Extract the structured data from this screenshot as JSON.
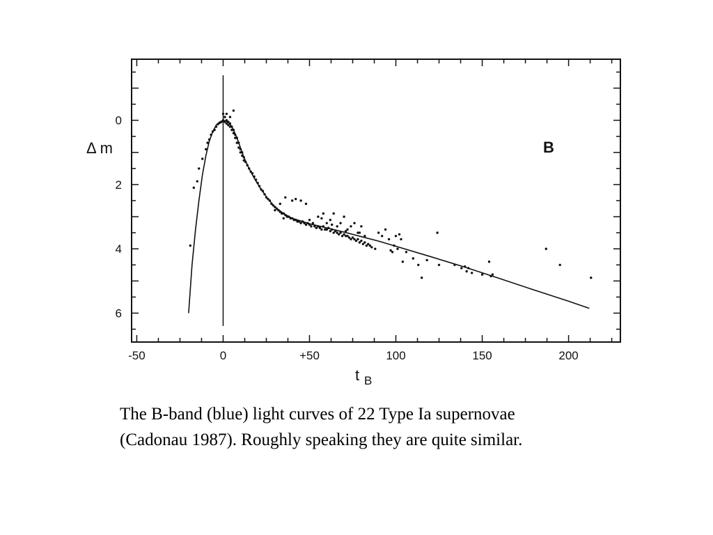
{
  "chart_data": {
    "type": "scatter",
    "title": "",
    "band_label": "B",
    "xlabel": "t",
    "xlabel_sub": "B",
    "ylabel": "Δ m",
    "xlim": [
      -53,
      230
    ],
    "ylim": [
      6.9,
      -1.9
    ],
    "x_ticks": [
      "-50",
      "0",
      "+50",
      "100",
      "150",
      "200"
    ],
    "x_tick_values": [
      -50,
      0,
      50,
      100,
      150,
      200
    ],
    "y_ticks": [
      "0",
      "2",
      "4",
      "6"
    ],
    "y_tick_values": [
      0,
      2,
      4,
      6
    ],
    "peak_marker_x": 0,
    "template_curve": {
      "x": [
        -20,
        -18,
        -16,
        -14,
        -12,
        -10,
        -8,
        -6,
        -4,
        -2,
        0,
        2,
        4,
        6,
        8,
        10,
        12,
        15,
        18,
        22,
        26,
        30,
        35,
        40,
        50,
        60,
        70,
        80,
        90,
        100,
        120,
        140,
        160,
        180,
        200,
        212
      ],
      "y": [
        6.0,
        4.5,
        3.4,
        2.5,
        1.7,
        1.1,
        0.65,
        0.35,
        0.15,
        0.05,
        0.0,
        0.03,
        0.12,
        0.3,
        0.55,
        0.85,
        1.15,
        1.5,
        1.8,
        2.15,
        2.45,
        2.7,
        2.9,
        3.05,
        3.22,
        3.35,
        3.48,
        3.62,
        3.76,
        3.92,
        4.24,
        4.57,
        4.92,
        5.28,
        5.63,
        5.85
      ]
    },
    "series": [
      {
        "x": [
          -19,
          -17,
          -15,
          -14,
          -12,
          -10,
          -9,
          -8,
          -7,
          -6,
          -5,
          -4,
          -3,
          -2,
          -1,
          0,
          0,
          1,
          1,
          2,
          2,
          3,
          3,
          4,
          4,
          5,
          5,
          6,
          6,
          7,
          7,
          8,
          8,
          9,
          9,
          10,
          10,
          11,
          11,
          12,
          12,
          13,
          14,
          15,
          16,
          17,
          18,
          19,
          20,
          21,
          22,
          23,
          24,
          25,
          26,
          27,
          28,
          29,
          30,
          31,
          32,
          33,
          34,
          35,
          36,
          37,
          38,
          39,
          40,
          41,
          42,
          43,
          44,
          45,
          46,
          47,
          48,
          49,
          50,
          51,
          52,
          53,
          54,
          55,
          56,
          57,
          58,
          59,
          60,
          61,
          62,
          63,
          64,
          65,
          66,
          67,
          68,
          69,
          70,
          71,
          72,
          73,
          74,
          75,
          76,
          77,
          78,
          79,
          80,
          81,
          82,
          83,
          84,
          85,
          86,
          88,
          90,
          92,
          94,
          96,
          97,
          98,
          100,
          101,
          102,
          104,
          106,
          110,
          113,
          115,
          118,
          124,
          125,
          134,
          138,
          140,
          141,
          142,
          144,
          150,
          154,
          155,
          156,
          187,
          195,
          213,
          2,
          4,
          6,
          30,
          33,
          36,
          40,
          45,
          48,
          50,
          55,
          58,
          60,
          62,
          64,
          66,
          68,
          70,
          72,
          74,
          76,
          78,
          80,
          82,
          35,
          42,
          57,
          63,
          71,
          79,
          99,
          103
        ],
        "y": [
          3.9,
          2.1,
          1.9,
          1.5,
          1.2,
          0.9,
          0.7,
          0.6,
          0.45,
          0.35,
          0.3,
          0.2,
          0.12,
          0.08,
          0.05,
          0.0,
          -0.2,
          0.05,
          -0.1,
          0.0,
          0.1,
          0.05,
          0.15,
          0.1,
          0.2,
          0.2,
          0.3,
          0.3,
          0.4,
          0.45,
          0.55,
          0.55,
          0.7,
          0.7,
          0.85,
          0.9,
          1.0,
          1.0,
          1.1,
          1.15,
          1.25,
          1.3,
          1.4,
          1.5,
          1.6,
          1.65,
          1.75,
          1.85,
          1.95,
          2.05,
          2.15,
          2.2,
          2.3,
          2.4,
          2.45,
          2.5,
          2.6,
          2.65,
          2.7,
          2.75,
          2.8,
          2.85,
          2.9,
          2.9,
          2.95,
          3.0,
          3.0,
          3.05,
          3.05,
          3.1,
          3.1,
          3.15,
          3.15,
          3.2,
          3.15,
          3.2,
          3.25,
          3.2,
          3.25,
          3.3,
          3.2,
          3.3,
          3.35,
          3.3,
          3.35,
          3.4,
          3.3,
          3.4,
          3.4,
          3.35,
          3.45,
          3.4,
          3.5,
          3.45,
          3.5,
          3.55,
          3.5,
          3.6,
          3.55,
          3.6,
          3.6,
          3.65,
          3.7,
          3.65,
          3.7,
          3.75,
          3.7,
          3.8,
          3.75,
          3.85,
          3.8,
          3.9,
          3.85,
          3.9,
          3.95,
          4.0,
          3.5,
          3.6,
          3.4,
          3.7,
          4.05,
          4.1,
          3.6,
          4.0,
          3.55,
          4.4,
          4.1,
          4.3,
          4.5,
          4.9,
          4.35,
          3.5,
          4.5,
          4.5,
          4.6,
          4.55,
          4.7,
          4.6,
          4.75,
          4.8,
          4.4,
          4.85,
          4.8,
          4.0,
          4.5,
          4.9,
          -0.2,
          -0.1,
          -0.3,
          2.8,
          2.6,
          2.4,
          2.5,
          2.5,
          2.6,
          3.1,
          3.0,
          2.9,
          3.2,
          3.1,
          2.9,
          3.3,
          3.2,
          3.0,
          3.4,
          3.3,
          3.2,
          3.5,
          3.3,
          3.6,
          3.05,
          2.45,
          3.05,
          3.25,
          3.45,
          3.5,
          3.9,
          3.7
        ]
      }
    ],
    "grid": false,
    "legend": "none"
  },
  "caption": {
    "line1": "The B-band (blue) light curves of 22 Type Ia supernovae",
    "line2": "(Cadonau 1987). Roughly speaking they are quite similar."
  }
}
